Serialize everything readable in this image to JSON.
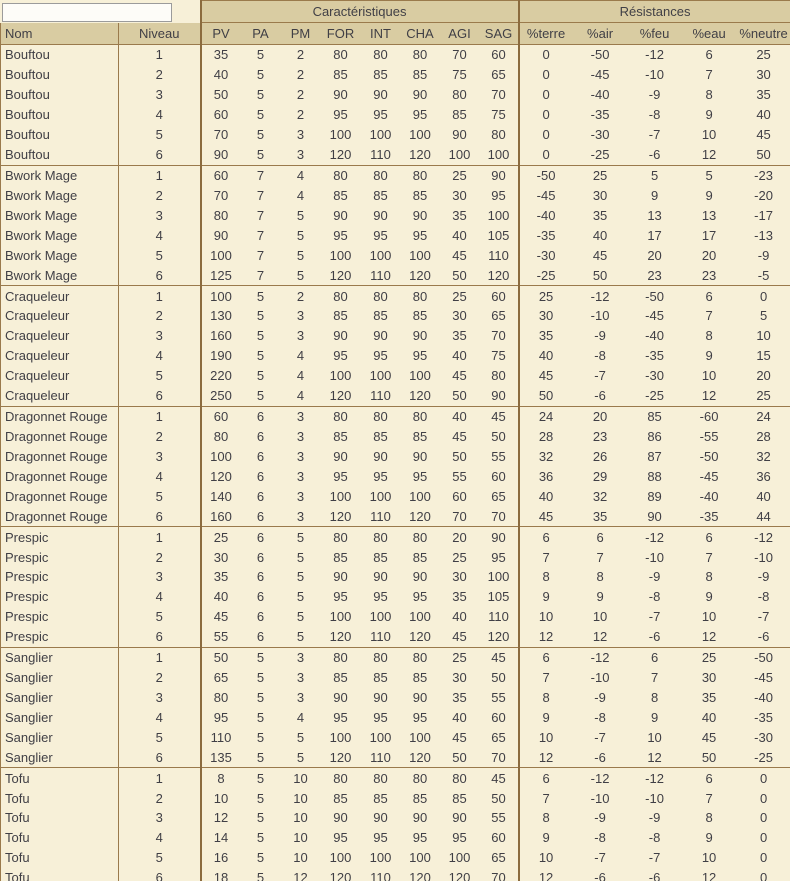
{
  "colors": {
    "header_bg": "#d9cca2",
    "body_bg": "#f7f0d8",
    "border": "#9a7a4c",
    "section_border": "#8b6b3e",
    "text": "#403f45",
    "corner_bg": "#fdfcf8",
    "corner_border": "#9b9b9b"
  },
  "table": {
    "sections": [
      {
        "label": "Caractéristiques"
      },
      {
        "label": "Résistances"
      }
    ],
    "columns": [
      "Nom",
      "Niveau",
      "PV",
      "PA",
      "PM",
      "FOR",
      "INT",
      "CHA",
      "AGI",
      "SAG",
      "%terre",
      "%air",
      "%feu",
      "%eau",
      "%neutre"
    ],
    "rows": [
      [
        "Bouftou",
        1,
        35,
        5,
        2,
        80,
        80,
        80,
        70,
        60,
        0,
        -50,
        -12,
        6,
        25
      ],
      [
        "Bouftou",
        2,
        40,
        5,
        2,
        85,
        85,
        85,
        75,
        65,
        0,
        -45,
        -10,
        7,
        30
      ],
      [
        "Bouftou",
        3,
        50,
        5,
        2,
        90,
        90,
        90,
        80,
        70,
        0,
        -40,
        -9,
        8,
        35
      ],
      [
        "Bouftou",
        4,
        60,
        5,
        2,
        95,
        95,
        95,
        85,
        75,
        0,
        -35,
        -8,
        9,
        40
      ],
      [
        "Bouftou",
        5,
        70,
        5,
        3,
        100,
        100,
        100,
        90,
        80,
        0,
        -30,
        -7,
        10,
        45
      ],
      [
        "Bouftou",
        6,
        90,
        5,
        3,
        120,
        110,
        120,
        100,
        100,
        0,
        -25,
        -6,
        12,
        50
      ],
      [
        "Bwork Mage",
        1,
        60,
        7,
        4,
        80,
        80,
        80,
        25,
        90,
        -50,
        25,
        5,
        5,
        -23
      ],
      [
        "Bwork Mage",
        2,
        70,
        7,
        4,
        85,
        85,
        85,
        30,
        95,
        -45,
        30,
        9,
        9,
        -20
      ],
      [
        "Bwork Mage",
        3,
        80,
        7,
        5,
        90,
        90,
        90,
        35,
        100,
        -40,
        35,
        13,
        13,
        -17
      ],
      [
        "Bwork Mage",
        4,
        90,
        7,
        5,
        95,
        95,
        95,
        40,
        105,
        -35,
        40,
        17,
        17,
        -13
      ],
      [
        "Bwork Mage",
        5,
        100,
        7,
        5,
        100,
        100,
        100,
        45,
        110,
        -30,
        45,
        20,
        20,
        -9
      ],
      [
        "Bwork Mage",
        6,
        125,
        7,
        5,
        120,
        110,
        120,
        50,
        120,
        -25,
        50,
        23,
        23,
        -5
      ],
      [
        "Craqueleur",
        1,
        100,
        5,
        2,
        80,
        80,
        80,
        25,
        60,
        25,
        -12,
        -50,
        6,
        0
      ],
      [
        "Craqueleur",
        2,
        130,
        5,
        3,
        85,
        85,
        85,
        30,
        65,
        30,
        -10,
        -45,
        7,
        5
      ],
      [
        "Craqueleur",
        3,
        160,
        5,
        3,
        90,
        90,
        90,
        35,
        70,
        35,
        -9,
        -40,
        8,
        10
      ],
      [
        "Craqueleur",
        4,
        190,
        5,
        4,
        95,
        95,
        95,
        40,
        75,
        40,
        -8,
        -35,
        9,
        15
      ],
      [
        "Craqueleur",
        5,
        220,
        5,
        4,
        100,
        100,
        100,
        45,
        80,
        45,
        -7,
        -30,
        10,
        20
      ],
      [
        "Craqueleur",
        6,
        250,
        5,
        4,
        120,
        110,
        120,
        50,
        90,
        50,
        -6,
        -25,
        12,
        25
      ],
      [
        "Dragonnet Rouge",
        1,
        60,
        6,
        3,
        80,
        80,
        80,
        40,
        45,
        24,
        20,
        85,
        -60,
        24
      ],
      [
        "Dragonnet Rouge",
        2,
        80,
        6,
        3,
        85,
        85,
        85,
        45,
        50,
        28,
        23,
        86,
        -55,
        28
      ],
      [
        "Dragonnet Rouge",
        3,
        100,
        6,
        3,
        90,
        90,
        90,
        50,
        55,
        32,
        26,
        87,
        -50,
        32
      ],
      [
        "Dragonnet Rouge",
        4,
        120,
        6,
        3,
        95,
        95,
        95,
        55,
        60,
        36,
        29,
        88,
        -45,
        36
      ],
      [
        "Dragonnet Rouge",
        5,
        140,
        6,
        3,
        100,
        100,
        100,
        60,
        65,
        40,
        32,
        89,
        -40,
        40
      ],
      [
        "Dragonnet Rouge",
        6,
        160,
        6,
        3,
        120,
        110,
        120,
        70,
        70,
        45,
        35,
        90,
        -35,
        44
      ],
      [
        "Prespic",
        1,
        25,
        6,
        5,
        80,
        80,
        80,
        20,
        90,
        6,
        6,
        -12,
        6,
        -12
      ],
      [
        "Prespic",
        2,
        30,
        6,
        5,
        85,
        85,
        85,
        25,
        95,
        7,
        7,
        -10,
        7,
        -10
      ],
      [
        "Prespic",
        3,
        35,
        6,
        5,
        90,
        90,
        90,
        30,
        100,
        8,
        8,
        -9,
        8,
        -9
      ],
      [
        "Prespic",
        4,
        40,
        6,
        5,
        95,
        95,
        95,
        35,
        105,
        9,
        9,
        -8,
        9,
        -8
      ],
      [
        "Prespic",
        5,
        45,
        6,
        5,
        100,
        100,
        100,
        40,
        110,
        10,
        10,
        -7,
        10,
        -7
      ],
      [
        "Prespic",
        6,
        55,
        6,
        5,
        120,
        110,
        120,
        45,
        120,
        12,
        12,
        -6,
        12,
        -6
      ],
      [
        "Sanglier",
        1,
        50,
        5,
        3,
        80,
        80,
        80,
        25,
        45,
        6,
        -12,
        6,
        25,
        -50
      ],
      [
        "Sanglier",
        2,
        65,
        5,
        3,
        85,
        85,
        85,
        30,
        50,
        7,
        -10,
        7,
        30,
        -45
      ],
      [
        "Sanglier",
        3,
        80,
        5,
        3,
        90,
        90,
        90,
        35,
        55,
        8,
        -9,
        8,
        35,
        -40
      ],
      [
        "Sanglier",
        4,
        95,
        5,
        4,
        95,
        95,
        95,
        40,
        60,
        9,
        -8,
        9,
        40,
        -35
      ],
      [
        "Sanglier",
        5,
        110,
        5,
        5,
        100,
        100,
        100,
        45,
        65,
        10,
        -7,
        10,
        45,
        -30
      ],
      [
        "Sanglier",
        6,
        135,
        5,
        5,
        120,
        110,
        120,
        50,
        70,
        12,
        -6,
        12,
        50,
        -25
      ],
      [
        "Tofu",
        1,
        8,
        5,
        10,
        80,
        80,
        80,
        80,
        45,
        6,
        -12,
        -12,
        6,
        0
      ],
      [
        "Tofu",
        2,
        10,
        5,
        10,
        85,
        85,
        85,
        85,
        50,
        7,
        -10,
        -10,
        7,
        0
      ],
      [
        "Tofu",
        3,
        12,
        5,
        10,
        90,
        90,
        90,
        90,
        55,
        8,
        -9,
        -9,
        8,
        0
      ],
      [
        "Tofu",
        4,
        14,
        5,
        10,
        95,
        95,
        95,
        95,
        60,
        9,
        -8,
        -8,
        9,
        0
      ],
      [
        "Tofu",
        5,
        16,
        5,
        10,
        100,
        100,
        100,
        100,
        65,
        10,
        -7,
        -7,
        10,
        0
      ],
      [
        "Tofu",
        6,
        18,
        5,
        12,
        120,
        110,
        120,
        120,
        70,
        12,
        -6,
        -6,
        12,
        0
      ]
    ]
  }
}
